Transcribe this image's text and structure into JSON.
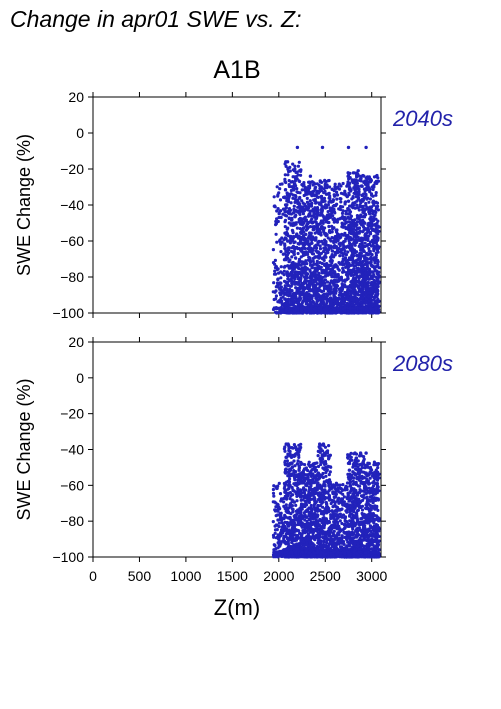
{
  "page": {
    "title": "Change in apr01 SWE vs. Z:"
  },
  "chart_data": {
    "type": "scatter",
    "title": "A1B",
    "xlabel": "Z(m)",
    "xlim": [
      0,
      3100
    ],
    "xticks": [
      0,
      500,
      1000,
      1500,
      2000,
      2500,
      3000
    ],
    "point_color": "#2222bb",
    "panels": [
      {
        "label": "2040s",
        "ylabel": "SWE Change (%)",
        "ylim": [
          -100,
          20
        ],
        "yticks": [
          -100,
          -80,
          -60,
          -40,
          -20,
          0,
          20
        ],
        "density": [
          {
            "x0": 1940,
            "x1": 2060,
            "ytop": -28,
            "n": 110
          },
          {
            "x0": 2060,
            "x1": 2240,
            "ytop": -16,
            "n": 520
          },
          {
            "x0": 2240,
            "x1": 2420,
            "ytop": -27,
            "n": 560
          },
          {
            "x0": 2420,
            "x1": 2560,
            "ytop": -26,
            "n": 380
          },
          {
            "x0": 2560,
            "x1": 2740,
            "ytop": -28,
            "n": 420
          },
          {
            "x0": 2740,
            "x1": 2920,
            "ytop": -22,
            "n": 640
          },
          {
            "x0": 2920,
            "x1": 3080,
            "ytop": -23,
            "n": 560
          }
        ],
        "highlights": [
          {
            "x": 2075,
            "y": -16
          },
          {
            "x": 2095,
            "y": -16
          },
          {
            "x": 2200,
            "y": -8
          },
          {
            "x": 2470,
            "y": -8
          },
          {
            "x": 2750,
            "y": -8
          },
          {
            "x": 2940,
            "y": -8
          },
          {
            "x": 2340,
            "y": -24
          },
          {
            "x": 2855,
            "y": -21
          }
        ]
      },
      {
        "label": "2080s",
        "ylabel": "SWE Change (%)",
        "ylim": [
          -100,
          20
        ],
        "yticks": [
          -100,
          -80,
          -60,
          -40,
          -20,
          0,
          20
        ],
        "density": [
          {
            "x0": 1940,
            "x1": 2060,
            "ytop": -58,
            "n": 110
          },
          {
            "x0": 2060,
            "x1": 2240,
            "ytop": -37,
            "n": 460
          },
          {
            "x0": 2240,
            "x1": 2420,
            "ytop": -47,
            "n": 480
          },
          {
            "x0": 2420,
            "x1": 2560,
            "ytop": -37,
            "n": 360
          },
          {
            "x0": 2560,
            "x1": 2740,
            "ytop": -58,
            "n": 320
          },
          {
            "x0": 2740,
            "x1": 2920,
            "ytop": -42,
            "n": 480
          },
          {
            "x0": 2920,
            "x1": 3080,
            "ytop": -47,
            "n": 440
          }
        ],
        "highlights": [
          {
            "x": 2080,
            "y": -37
          },
          {
            "x": 2100,
            "y": -37
          },
          {
            "x": 2440,
            "y": -37
          },
          {
            "x": 2480,
            "y": -37
          },
          {
            "x": 2820,
            "y": -42
          },
          {
            "x": 2880,
            "y": -42
          },
          {
            "x": 2940,
            "y": -42
          },
          {
            "x": 2200,
            "y": -48
          }
        ]
      }
    ]
  }
}
